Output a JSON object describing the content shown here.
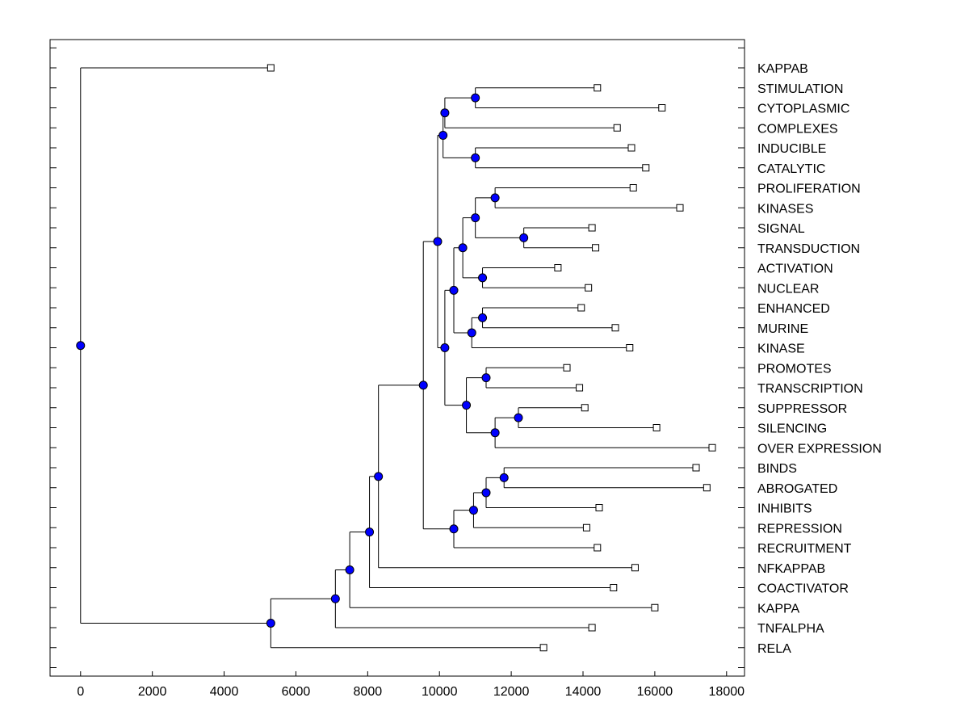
{
  "chart_data": {
    "type": "dendrogram",
    "title": "",
    "xlabel": "",
    "ylabel": "",
    "xlim": [
      -850,
      18500
    ],
    "xticks": [
      0,
      2000,
      4000,
      6000,
      8000,
      10000,
      12000,
      14000,
      16000,
      18000
    ],
    "leaves": [
      {
        "label": "KAPPAB",
        "x": 5300
      },
      {
        "label": "STIMULATION",
        "x": 14400
      },
      {
        "label": "CYTOPLASMIC",
        "x": 16200
      },
      {
        "label": "COMPLEXES",
        "x": 14950
      },
      {
        "label": "INDUCIBLE",
        "x": 15350
      },
      {
        "label": "CATALYTIC",
        "x": 15750
      },
      {
        "label": "PROLIFERATION",
        "x": 15400
      },
      {
        "label": "KINASES",
        "x": 16700
      },
      {
        "label": "SIGNAL",
        "x": 14250
      },
      {
        "label": "TRANSDUCTION",
        "x": 14350
      },
      {
        "label": "ACTIVATION",
        "x": 13300
      },
      {
        "label": "NUCLEAR",
        "x": 14150
      },
      {
        "label": "ENHANCED",
        "x": 13950
      },
      {
        "label": "MURINE",
        "x": 14900
      },
      {
        "label": "KINASE",
        "x": 15300
      },
      {
        "label": "PROMOTES",
        "x": 13550
      },
      {
        "label": "TRANSCRIPTION",
        "x": 13900
      },
      {
        "label": "SUPPRESSOR",
        "x": 14050
      },
      {
        "label": "SILENCING",
        "x": 16050
      },
      {
        "label": "OVER EXPRESSION",
        "x": 17600
      },
      {
        "label": "BINDS",
        "x": 17150
      },
      {
        "label": "ABROGATED",
        "x": 17450
      },
      {
        "label": "INHIBITS",
        "x": 14450
      },
      {
        "label": "REPRESSION",
        "x": 14100
      },
      {
        "label": "RECRUITMENT",
        "x": 14400
      },
      {
        "label": "NFKAPPAB",
        "x": 15450
      },
      {
        "label": "COACTIVATOR",
        "x": 14850
      },
      {
        "label": "KAPPA",
        "x": 16000
      },
      {
        "label": "TNFALPHA",
        "x": 14250
      },
      {
        "label": "RELA",
        "x": 12900
      }
    ],
    "merges": [
      {
        "x": 11000,
        "children": [
          "L1",
          "L2"
        ]
      },
      {
        "x": 11000,
        "children": [
          "L4",
          "L5"
        ]
      },
      {
        "x": 10150,
        "children": [
          "N0",
          "L3"
        ]
      },
      {
        "x": 10100,
        "children": [
          "N2",
          "N1"
        ]
      },
      {
        "x": 11550,
        "children": [
          "L6",
          "L7"
        ]
      },
      {
        "x": 12350,
        "children": [
          "L8",
          "L9"
        ]
      },
      {
        "x": 11000,
        "children": [
          "N4",
          "N5"
        ]
      },
      {
        "x": 11200,
        "children": [
          "L10",
          "L11"
        ]
      },
      {
        "x": 10650,
        "children": [
          "N6",
          "N7"
        ]
      },
      {
        "x": 11200,
        "children": [
          "L12",
          "L13"
        ]
      },
      {
        "x": 10900,
        "children": [
          "N9",
          "L14"
        ]
      },
      {
        "x": 10400,
        "children": [
          "N8",
          "N10"
        ]
      },
      {
        "x": 11300,
        "children": [
          "L15",
          "L16"
        ]
      },
      {
        "x": 12200,
        "children": [
          "L17",
          "L18"
        ]
      },
      {
        "x": 11550,
        "children": [
          "N13",
          "L19"
        ]
      },
      {
        "x": 10750,
        "children": [
          "N12",
          "N14"
        ]
      },
      {
        "x": 10150,
        "children": [
          "N11",
          "N15"
        ]
      },
      {
        "x": 9950,
        "children": [
          "N3",
          "N16"
        ]
      },
      {
        "x": 11800,
        "children": [
          "L20",
          "L21"
        ]
      },
      {
        "x": 11300,
        "children": [
          "N18",
          "L22"
        ]
      },
      {
        "x": 10950,
        "children": [
          "N19",
          "L23"
        ]
      },
      {
        "x": 10400,
        "children": [
          "N20",
          "L24"
        ]
      },
      {
        "x": 9550,
        "children": [
          "N17",
          "N21"
        ]
      },
      {
        "x": 8300,
        "children": [
          "N22",
          "L25"
        ]
      },
      {
        "x": 8050,
        "children": [
          "N23",
          "L26"
        ]
      },
      {
        "x": 7500,
        "children": [
          "N24",
          "L27"
        ]
      },
      {
        "x": 7100,
        "children": [
          "N25",
          "L28"
        ]
      },
      {
        "x": 5300,
        "children": [
          "N26",
          "L29"
        ]
      },
      {
        "x": 0,
        "children": [
          "L0",
          "N27"
        ]
      }
    ],
    "node_color": "#0000FF",
    "leaf_marker": "open-square"
  }
}
